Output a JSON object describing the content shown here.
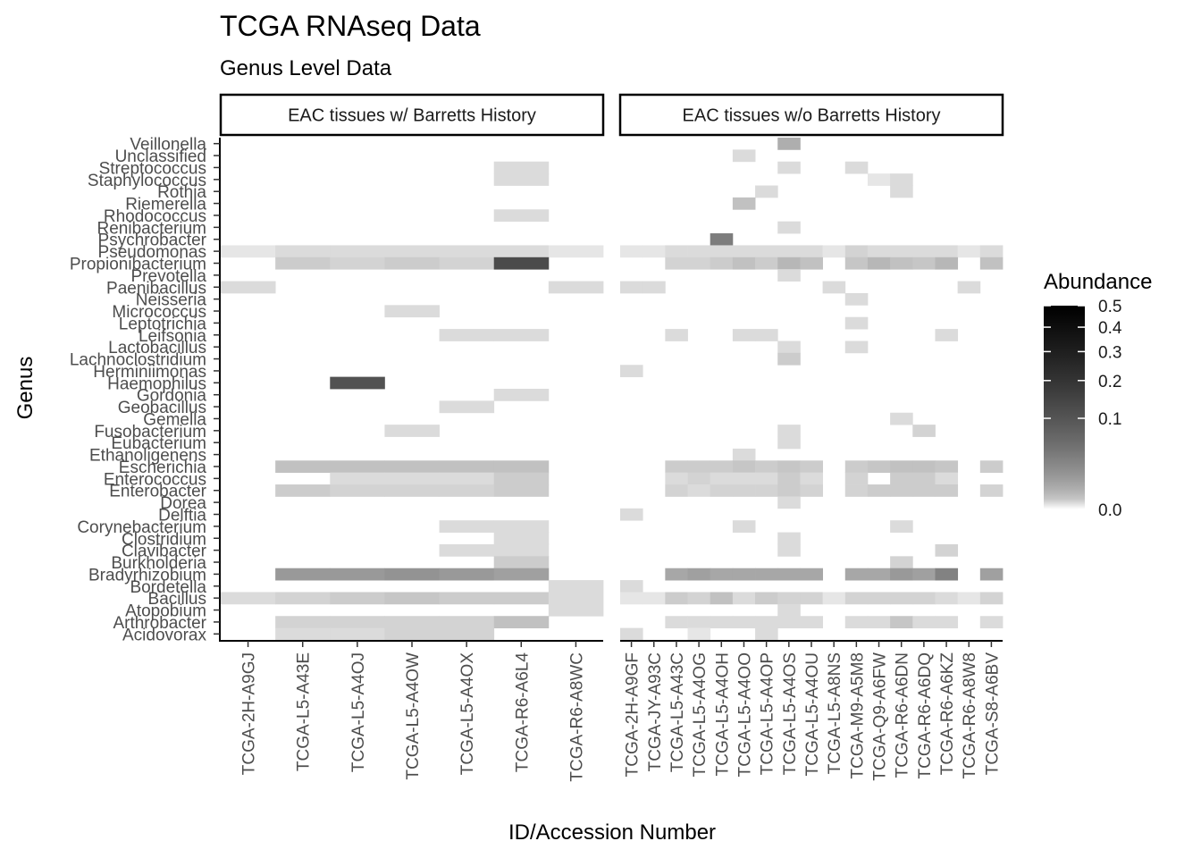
{
  "chart_data": {
    "type": "heatmap",
    "title": "TCGA RNAseq Data",
    "subtitle": "Genus Level Data",
    "xlabel": "ID/Accession Number",
    "ylabel": "Genus",
    "legend": {
      "title": "Abundance",
      "position": "right",
      "ticks": [
        "0.5",
        "0.4",
        "0.3",
        "0.2",
        "0.1",
        "0.0"
      ],
      "tick_values": [
        0.5,
        0.4,
        0.3,
        0.2,
        0.1,
        0.0
      ],
      "scale": "sqrt",
      "low_color": "#ffffff",
      "high_color": "#000000"
    },
    "genera": [
      "Veillonella",
      "Unclassified",
      "Streptococcus",
      "Staphylococcus",
      "Rothia",
      "Riemerella",
      "Rhodococcus",
      "Renibacterium",
      "Psychrobacter",
      "Pseudomonas",
      "Propionibacterium",
      "Prevotella",
      "Paenibacillus",
      "Neisseria",
      "Micrococcus",
      "Leptotrichia",
      "Leifsonia",
      "Lactobacillus",
      "Lachnoclostridium",
      "Herminiimonas",
      "Haemophilus",
      "Gordonia",
      "Geobacillus",
      "Gemella",
      "Fusobacterium",
      "Eubacterium",
      "Ethanoligenens",
      "Escherichia",
      "Enterococcus",
      "Enterobacter",
      "Dorea",
      "Delftia",
      "Corynebacterium",
      "Clostridium",
      "Clavibacter",
      "Burkholderia",
      "Bradyrhizobium",
      "Bordetella",
      "Bacillus",
      "Atopobium",
      "Arthrobacter",
      "Acidovorax"
    ],
    "panels": [
      {
        "label": "EAC tissues w/ Barretts History",
        "samples": [
          "TCGA-2H-A9GJ",
          "TCGA-L5-A43E",
          "TCGA-L5-A4OJ",
          "TCGA-L5-A4OW",
          "TCGA-L5-A4OX",
          "TCGA-R6-A6L4",
          "TCGA-R6-A8WC"
        ],
        "values": {
          "Streptococcus": [
            0,
            0,
            0,
            0,
            0,
            0.01,
            0
          ],
          "Staphylococcus": [
            0,
            0,
            0,
            0,
            0,
            0.01,
            0
          ],
          "Rhodococcus": [
            0,
            0,
            0,
            0,
            0,
            0.01,
            0
          ],
          "Pseudomonas": [
            0.005,
            0.01,
            0.01,
            0.01,
            0.01,
            0.01,
            0.005
          ],
          "Propionibacterium": [
            0,
            0.02,
            0.015,
            0.02,
            0.015,
            0.25,
            0
          ],
          "Paenibacillus": [
            0.01,
            0,
            0,
            0,
            0,
            0,
            0.01
          ],
          "Micrococcus": [
            0,
            0,
            0,
            0.01,
            0,
            0,
            0
          ],
          "Leifsonia": [
            0,
            0,
            0,
            0,
            0.01,
            0.01,
            0
          ],
          "Haemophilus": [
            0,
            0,
            0.23,
            0,
            0,
            0,
            0
          ],
          "Gordonia": [
            0,
            0,
            0,
            0,
            0,
            0.01,
            0
          ],
          "Geobacillus": [
            0,
            0,
            0,
            0,
            0.01,
            0,
            0
          ],
          "Fusobacterium": [
            0,
            0,
            0,
            0.01,
            0,
            0,
            0
          ],
          "Escherichia": [
            0,
            0.03,
            0.03,
            0.03,
            0.03,
            0.03,
            0
          ],
          "Enterococcus": [
            0,
            0,
            0.01,
            0.01,
            0.01,
            0.02,
            0
          ],
          "Enterobacter": [
            0,
            0.02,
            0.015,
            0.015,
            0.015,
            0.02,
            0
          ],
          "Corynebacterium": [
            0,
            0,
            0,
            0,
            0.01,
            0.01,
            0
          ],
          "Clostridium": [
            0,
            0,
            0,
            0,
            0,
            0.01,
            0
          ],
          "Clavibacter": [
            0,
            0,
            0,
            0,
            0.01,
            0.01,
            0
          ],
          "Burkholderia": [
            0,
            0,
            0,
            0,
            0,
            0.02,
            0
          ],
          "Bradyrhizobium": [
            0,
            0.08,
            0.08,
            0.09,
            0.08,
            0.07,
            0
          ],
          "Bordetella": [
            0,
            0,
            0,
            0,
            0,
            0,
            0.01
          ],
          "Bacillus": [
            0.01,
            0.015,
            0.02,
            0.025,
            0.02,
            0.02,
            0.01
          ],
          "Atopobium": [
            0,
            0,
            0,
            0,
            0,
            0,
            0.01
          ],
          "Arthrobacter": [
            0,
            0.015,
            0.015,
            0.015,
            0.015,
            0.03,
            0
          ],
          "Acidovorax": [
            0,
            0.01,
            0.01,
            0.015,
            0.015,
            0,
            0
          ]
        }
      },
      {
        "label": "EAC tissues w/o Barretts History",
        "samples": [
          "TCGA-2H-A9GF",
          "TCGA-JY-A93C",
          "TCGA-L5-A43C",
          "TCGA-L5-A4OG",
          "TCGA-L5-A4OH",
          "TCGA-L5-A4OO",
          "TCGA-L5-A4OP",
          "TCGA-L5-A4OS",
          "TCGA-L5-A4OU",
          "TCGA-L5-A8NS",
          "TCGA-M9-A5M8",
          "TCGA-Q9-A6FW",
          "TCGA-R6-A6DN",
          "TCGA-R6-A6DQ",
          "TCGA-R6-A6KZ",
          "TCGA-R6-A8W8",
          "TCGA-S8-A6BV"
        ],
        "values": {
          "Veillonella": [
            0,
            0,
            0,
            0,
            0,
            0,
            0,
            0.05,
            0,
            0,
            0,
            0,
            0,
            0,
            0,
            0,
            0
          ],
          "Unclassified": [
            0,
            0,
            0,
            0,
            0,
            0.01,
            0,
            0,
            0,
            0,
            0,
            0,
            0,
            0,
            0,
            0,
            0
          ],
          "Streptococcus": [
            0,
            0,
            0,
            0,
            0,
            0,
            0,
            0.01,
            0,
            0,
            0.01,
            0,
            0,
            0,
            0,
            0,
            0
          ],
          "Staphylococcus": [
            0,
            0,
            0,
            0,
            0,
            0,
            0,
            0,
            0,
            0,
            0,
            0.005,
            0.01,
            0,
            0,
            0,
            0
          ],
          "Rothia": [
            0,
            0,
            0,
            0,
            0,
            0,
            0.01,
            0,
            0,
            0,
            0,
            0,
            0.01,
            0,
            0,
            0,
            0
          ],
          "Riemerella": [
            0,
            0,
            0,
            0,
            0,
            0.03,
            0,
            0,
            0,
            0,
            0,
            0,
            0,
            0,
            0,
            0,
            0
          ],
          "Renibacterium": [
            0,
            0,
            0,
            0,
            0,
            0,
            0,
            0.01,
            0,
            0,
            0,
            0,
            0,
            0,
            0,
            0,
            0
          ],
          "Psychrobacter": [
            0,
            0,
            0,
            0,
            0.13,
            0,
            0,
            0,
            0,
            0,
            0,
            0,
            0,
            0,
            0,
            0,
            0
          ],
          "Pseudomonas": [
            0.005,
            0.005,
            0.01,
            0.01,
            0.01,
            0.01,
            0.01,
            0.01,
            0.01,
            0.005,
            0.015,
            0.01,
            0.01,
            0.01,
            0.01,
            0.005,
            0.01
          ],
          "Propionibacterium": [
            0,
            0,
            0.015,
            0.015,
            0.02,
            0.03,
            0.02,
            0.04,
            0.03,
            0,
            0.025,
            0.04,
            0.03,
            0.025,
            0.04,
            0,
            0.03
          ],
          "Prevotella": [
            0,
            0,
            0,
            0,
            0,
            0,
            0,
            0.01,
            0,
            0,
            0,
            0,
            0,
            0,
            0,
            0,
            0
          ],
          "Paenibacillus": [
            0.01,
            0.01,
            0,
            0,
            0,
            0,
            0,
            0,
            0,
            0.01,
            0,
            0,
            0,
            0,
            0,
            0.01,
            0
          ],
          "Neisseria": [
            0,
            0,
            0,
            0,
            0,
            0,
            0,
            0,
            0,
            0,
            0.01,
            0,
            0,
            0,
            0,
            0,
            0
          ],
          "Leptotrichia": [
            0,
            0,
            0,
            0,
            0,
            0,
            0,
            0,
            0,
            0,
            0.01,
            0,
            0,
            0,
            0,
            0,
            0
          ],
          "Leifsonia": [
            0,
            0,
            0.01,
            0,
            0,
            0.01,
            0.01,
            0,
            0,
            0,
            0,
            0,
            0,
            0,
            0.01,
            0,
            0
          ],
          "Lactobacillus": [
            0,
            0,
            0,
            0,
            0,
            0,
            0,
            0.01,
            0,
            0,
            0.01,
            0,
            0,
            0,
            0,
            0,
            0
          ],
          "Lachnoclostridium": [
            0,
            0,
            0,
            0,
            0,
            0,
            0,
            0.02,
            0,
            0,
            0,
            0,
            0,
            0,
            0,
            0,
            0
          ],
          "Herminiimonas": [
            0.01,
            0,
            0,
            0,
            0,
            0,
            0,
            0,
            0,
            0,
            0,
            0,
            0,
            0,
            0,
            0,
            0
          ],
          "Gemella": [
            0,
            0,
            0,
            0,
            0,
            0,
            0,
            0,
            0,
            0,
            0,
            0,
            0.01,
            0,
            0,
            0,
            0
          ],
          "Fusobacterium": [
            0,
            0,
            0,
            0,
            0,
            0,
            0,
            0.01,
            0,
            0,
            0,
            0,
            0,
            0.015,
            0,
            0,
            0
          ],
          "Eubacterium": [
            0,
            0,
            0,
            0,
            0,
            0,
            0,
            0.01,
            0,
            0,
            0,
            0,
            0,
            0,
            0,
            0,
            0
          ],
          "Ethanoligenens": [
            0,
            0,
            0,
            0,
            0,
            0.01,
            0,
            0,
            0,
            0,
            0,
            0,
            0,
            0,
            0,
            0,
            0
          ],
          "Escherichia": [
            0,
            0,
            0.02,
            0.02,
            0.02,
            0.025,
            0.02,
            0.025,
            0.02,
            0,
            0.02,
            0.025,
            0.03,
            0.03,
            0.025,
            0,
            0.02
          ],
          "Enterococcus": [
            0,
            0,
            0.01,
            0.015,
            0.01,
            0.01,
            0.01,
            0.02,
            0.01,
            0,
            0.015,
            0,
            0.02,
            0.02,
            0.01,
            0,
            0
          ],
          "Enterobacter": [
            0,
            0,
            0.015,
            0.01,
            0.015,
            0.015,
            0.015,
            0.02,
            0.015,
            0,
            0.015,
            0.02,
            0.02,
            0.02,
            0.02,
            0,
            0.015
          ],
          "Dorea": [
            0,
            0,
            0,
            0,
            0,
            0,
            0,
            0.01,
            0,
            0,
            0,
            0,
            0,
            0,
            0,
            0,
            0
          ],
          "Delftia": [
            0.01,
            0,
            0,
            0,
            0,
            0,
            0,
            0,
            0,
            0,
            0,
            0,
            0,
            0,
            0,
            0,
            0
          ],
          "Corynebacterium": [
            0,
            0,
            0,
            0,
            0,
            0.01,
            0,
            0,
            0,
            0,
            0,
            0,
            0.01,
            0,
            0,
            0,
            0
          ],
          "Clostridium": [
            0,
            0,
            0,
            0,
            0,
            0,
            0,
            0.01,
            0,
            0,
            0,
            0,
            0,
            0,
            0,
            0,
            0
          ],
          "Clavibacter": [
            0,
            0,
            0,
            0,
            0,
            0,
            0,
            0.01,
            0,
            0,
            0,
            0,
            0,
            0,
            0.015,
            0,
            0
          ],
          "Burkholderia": [
            0,
            0,
            0,
            0,
            0,
            0,
            0,
            0,
            0,
            0,
            0,
            0,
            0.015,
            0,
            0,
            0,
            0
          ],
          "Bradyrhizobium": [
            0,
            0,
            0.06,
            0.07,
            0.06,
            0.06,
            0.06,
            0.06,
            0.06,
            0,
            0.06,
            0.06,
            0.08,
            0.07,
            0.12,
            0,
            0.07
          ],
          "Bordetella": [
            0.01,
            0,
            0,
            0,
            0,
            0,
            0,
            0,
            0,
            0,
            0,
            0,
            0,
            0,
            0,
            0,
            0
          ],
          "Bacillus": [
            0.005,
            0.005,
            0.02,
            0.015,
            0.03,
            0.01,
            0.02,
            0.015,
            0.015,
            0.005,
            0.015,
            0.015,
            0.015,
            0.015,
            0.01,
            0.005,
            0.015
          ],
          "Atopobium": [
            0,
            0,
            0,
            0,
            0,
            0,
            0,
            0.01,
            0,
            0,
            0,
            0,
            0,
            0,
            0,
            0,
            0
          ],
          "Arthrobacter": [
            0,
            0,
            0.01,
            0.01,
            0.01,
            0.01,
            0.01,
            0.01,
            0.01,
            0,
            0.01,
            0.01,
            0.025,
            0.01,
            0.01,
            0,
            0.01
          ],
          "Acidovorax": [
            0.01,
            0,
            0,
            0.005,
            0,
            0,
            0.01,
            0,
            0,
            0,
            0,
            0,
            0,
            0,
            0,
            0,
            0
          ]
        }
      }
    ]
  }
}
